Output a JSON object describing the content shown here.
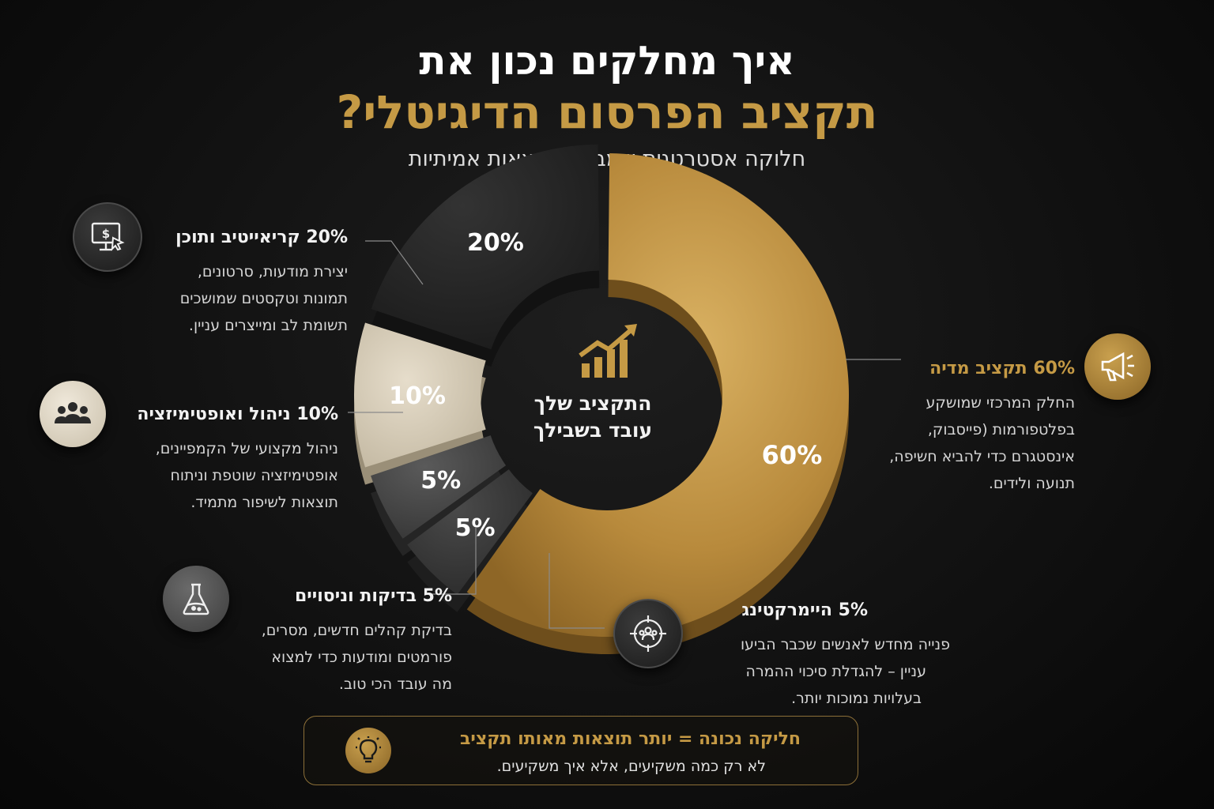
{
  "title_line1": "איך מחלקים נכון את",
  "title_line2": "תקציב הפרסום הדיגיטלי?",
  "subtitle": "חלוקה אסטרטגית שמביאה תוצאות אמיתיות",
  "center": {
    "line1": "התקציב שלך",
    "line2": "עובד בשבילך"
  },
  "colors": {
    "gold": "#c59a45",
    "dark": "#262626",
    "cream": "#d8cfbd",
    "grey": "#4a4a4a",
    "background": "#111111"
  },
  "chart_data": {
    "type": "pie",
    "style": "donut",
    "categories": [
      "תקציב מדיה",
      "קריאייטיב ותוכן",
      "ניהול ואופטימיזציה",
      "בדיקות וניסויים",
      "היימרקטינג"
    ],
    "values": [
      60,
      20,
      10,
      5,
      5
    ],
    "value_labels": [
      "60%",
      "20%",
      "10%",
      "5%",
      "5%"
    ],
    "slice_colors": [
      "#c59a45",
      "#262626",
      "#d8cfbd",
      "#4a4a4a",
      "#3a3a3a"
    ]
  },
  "sections": {
    "media": {
      "heading": "60% תקציב מדיה",
      "lines": [
        "החלק המרכזי שמושקע",
        "בפלטפורמות (פייסבוק,",
        "אינסטגרם כדי להביא חשיפה,",
        "תנועה ולידים."
      ],
      "icon": "megaphone-icon"
    },
    "creative": {
      "heading": "20% קריאייטיב ותוכן",
      "lines": [
        "יצירת מודעות, סרטונים,",
        "תמונות וטקסטים שמושכים",
        "תשומת לב ומייצרים עניין."
      ],
      "icon": "monitor-dollar-icon"
    },
    "management": {
      "heading": "10% ניהול ואופטימיזציה",
      "lines": [
        "ניהול מקצועי של הקמפיינים,",
        "אופטימיזציה שוטפת וניתוח",
        "תוצאות לשיפור מתמיד."
      ],
      "icon": "team-icon"
    },
    "testing": {
      "heading": "5% בדיקות וניסויים",
      "lines": [
        "בדיקת קהלים חדשים, מסרים,",
        "פורמטים ומודעות כדי למצוא",
        "מה עובד הכי טוב."
      ],
      "icon": "flask-icon"
    },
    "remarketing": {
      "heading": "5% היימרקטינג",
      "lines": [
        "פנייה מחדש לאנשים שכבר הביעו",
        "עניין – להגדלת סיכוי ההמרה",
        "בעלויות נמוכות יותר."
      ],
      "icon": "target-audience-icon"
    }
  },
  "footer": {
    "heading": "חליקה נכונה = יותר תוצאות מאותו תקציב",
    "body": "לא רק כמה משקיעים, אלא איך משקיעים.",
    "icon": "lightbulb-icon"
  }
}
